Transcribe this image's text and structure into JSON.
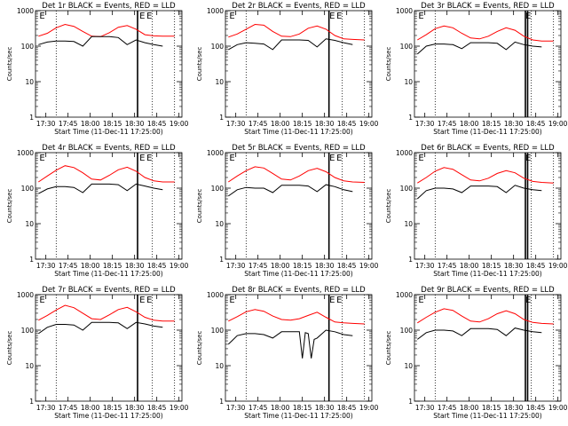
{
  "chart_data": {
    "type": "line",
    "layout": "3x3 grid",
    "y_scale": "log",
    "ylim": [
      1,
      1000
    ],
    "x_range_minutes": [
      -2,
      97
    ],
    "ylabel": "Counts/sec",
    "xlabel": "Start Time (11-Dec-11 17:25:00)",
    "x_ticks": [
      "17:30",
      "17:45",
      "18:00",
      "18:15",
      "18:30",
      "18:45",
      "19:00"
    ],
    "y_ticks": [
      "1",
      "10",
      "100",
      "1000"
    ],
    "title_suffix": "BLACK = Events, RED = LLD",
    "event_marker_label": "E",
    "series_colors": {
      "events": "#000000",
      "lld": "#ff0000"
    },
    "panels": [
      {
        "title_prefix": "Det 1r",
        "dotted_lines": [
          12,
          77,
          92
        ],
        "solid_lines": [
          67
        ],
        "markers": [
          0,
          67.7,
          72.5
        ],
        "lld": [
          [
            0,
            190
          ],
          [
            6,
            230
          ],
          [
            12,
            330
          ],
          [
            18,
            410
          ],
          [
            24,
            360
          ],
          [
            30,
            260
          ],
          [
            36,
            190
          ],
          [
            42,
            185
          ],
          [
            48,
            240
          ],
          [
            54,
            340
          ],
          [
            60,
            380
          ],
          [
            66,
            300
          ],
          [
            72,
            210
          ],
          [
            78,
            195
          ],
          [
            84,
            190
          ],
          [
            92,
            190
          ]
        ],
        "events": [
          [
            0,
            110
          ],
          [
            6,
            130
          ],
          [
            12,
            140
          ],
          [
            18,
            140
          ],
          [
            24,
            135
          ],
          [
            30,
            100
          ],
          [
            36,
            185
          ],
          [
            42,
            185
          ],
          [
            48,
            185
          ],
          [
            54,
            175
          ],
          [
            60,
            110
          ],
          [
            66,
            150
          ],
          [
            72,
            125
          ],
          [
            78,
            110
          ],
          [
            84,
            100
          ]
        ]
      },
      {
        "title_prefix": "Det 2r",
        "dotted_lines": [
          12,
          77,
          92
        ],
        "solid_lines": [
          68
        ],
        "markers": [
          0,
          67.7,
          72.5
        ],
        "lld": [
          [
            0,
            180
          ],
          [
            6,
            220
          ],
          [
            12,
            300
          ],
          [
            18,
            410
          ],
          [
            24,
            390
          ],
          [
            30,
            260
          ],
          [
            36,
            190
          ],
          [
            42,
            185
          ],
          [
            48,
            220
          ],
          [
            54,
            320
          ],
          [
            60,
            370
          ],
          [
            66,
            300
          ],
          [
            72,
            200
          ],
          [
            78,
            160
          ],
          [
            84,
            155
          ],
          [
            92,
            150
          ]
        ],
        "events": [
          [
            0,
            80
          ],
          [
            6,
            110
          ],
          [
            12,
            125
          ],
          [
            18,
            120
          ],
          [
            24,
            115
          ],
          [
            30,
            80
          ],
          [
            36,
            150
          ],
          [
            42,
            150
          ],
          [
            48,
            150
          ],
          [
            54,
            145
          ],
          [
            60,
            95
          ],
          [
            66,
            160
          ],
          [
            72,
            145
          ],
          [
            78,
            125
          ],
          [
            84,
            110
          ]
        ]
      },
      {
        "title_prefix": "Det 3r",
        "dotted_lines": [
          12,
          77,
          92
        ],
        "solid_lines": [
          73,
          74.5
        ],
        "markers": [
          0,
          72.5
        ],
        "lld": [
          [
            0,
            150
          ],
          [
            6,
            210
          ],
          [
            12,
            310
          ],
          [
            18,
            370
          ],
          [
            24,
            330
          ],
          [
            30,
            230
          ],
          [
            36,
            170
          ],
          [
            42,
            160
          ],
          [
            48,
            190
          ],
          [
            54,
            260
          ],
          [
            60,
            330
          ],
          [
            66,
            280
          ],
          [
            72,
            190
          ],
          [
            78,
            150
          ],
          [
            84,
            140
          ],
          [
            92,
            140
          ]
        ],
        "events": [
          [
            0,
            60
          ],
          [
            6,
            100
          ],
          [
            12,
            115
          ],
          [
            18,
            115
          ],
          [
            24,
            110
          ],
          [
            30,
            85
          ],
          [
            36,
            125
          ],
          [
            42,
            125
          ],
          [
            48,
            125
          ],
          [
            54,
            120
          ],
          [
            60,
            80
          ],
          [
            66,
            130
          ],
          [
            72,
            110
          ],
          [
            78,
            100
          ],
          [
            84,
            95
          ]
        ]
      },
      {
        "title_prefix": "Det 4r",
        "dotted_lines": [
          12,
          77,
          92
        ],
        "solid_lines": [
          67
        ],
        "markers": [
          0,
          67.7,
          72.5
        ],
        "lld": [
          [
            0,
            150
          ],
          [
            6,
            220
          ],
          [
            12,
            320
          ],
          [
            18,
            430
          ],
          [
            24,
            380
          ],
          [
            30,
            270
          ],
          [
            36,
            180
          ],
          [
            42,
            170
          ],
          [
            48,
            230
          ],
          [
            54,
            330
          ],
          [
            60,
            390
          ],
          [
            66,
            300
          ],
          [
            72,
            200
          ],
          [
            78,
            160
          ],
          [
            84,
            150
          ],
          [
            92,
            150
          ]
        ],
        "events": [
          [
            0,
            70
          ],
          [
            6,
            95
          ],
          [
            12,
            110
          ],
          [
            18,
            110
          ],
          [
            24,
            105
          ],
          [
            30,
            75
          ],
          [
            36,
            130
          ],
          [
            42,
            130
          ],
          [
            48,
            130
          ],
          [
            54,
            125
          ],
          [
            60,
            85
          ],
          [
            66,
            130
          ],
          [
            72,
            115
          ],
          [
            78,
            100
          ],
          [
            84,
            90
          ]
        ]
      },
      {
        "title_prefix": "Det 5r",
        "dotted_lines": [
          12,
          77,
          92
        ],
        "solid_lines": [
          68
        ],
        "markers": [
          0,
          67.7,
          72.5
        ],
        "lld": [
          [
            0,
            150
          ],
          [
            6,
            220
          ],
          [
            12,
            310
          ],
          [
            18,
            400
          ],
          [
            24,
            370
          ],
          [
            30,
            260
          ],
          [
            36,
            180
          ],
          [
            42,
            170
          ],
          [
            48,
            220
          ],
          [
            54,
            310
          ],
          [
            60,
            360
          ],
          [
            66,
            290
          ],
          [
            72,
            200
          ],
          [
            78,
            160
          ],
          [
            84,
            150
          ],
          [
            92,
            145
          ]
        ],
        "events": [
          [
            0,
            60
          ],
          [
            6,
            90
          ],
          [
            12,
            105
          ],
          [
            18,
            100
          ],
          [
            24,
            100
          ],
          [
            30,
            75
          ],
          [
            36,
            120
          ],
          [
            42,
            120
          ],
          [
            48,
            120
          ],
          [
            54,
            115
          ],
          [
            60,
            80
          ],
          [
            66,
            125
          ],
          [
            72,
            110
          ],
          [
            78,
            90
          ],
          [
            84,
            80
          ]
        ]
      },
      {
        "title_prefix": "Det 6r",
        "dotted_lines": [
          12,
          77,
          92
        ],
        "solid_lines": [
          73,
          74.5
        ],
        "markers": [
          0,
          72.5
        ],
        "lld": [
          [
            0,
            140
          ],
          [
            6,
            200
          ],
          [
            12,
            300
          ],
          [
            18,
            380
          ],
          [
            24,
            340
          ],
          [
            30,
            240
          ],
          [
            36,
            170
          ],
          [
            42,
            160
          ],
          [
            48,
            190
          ],
          [
            54,
            260
          ],
          [
            60,
            310
          ],
          [
            66,
            270
          ],
          [
            72,
            190
          ],
          [
            78,
            155
          ],
          [
            84,
            145
          ],
          [
            92,
            140
          ]
        ],
        "events": [
          [
            0,
            50
          ],
          [
            6,
            85
          ],
          [
            12,
            100
          ],
          [
            18,
            100
          ],
          [
            24,
            95
          ],
          [
            30,
            75
          ],
          [
            36,
            115
          ],
          [
            42,
            115
          ],
          [
            48,
            115
          ],
          [
            54,
            110
          ],
          [
            60,
            75
          ],
          [
            66,
            120
          ],
          [
            72,
            100
          ],
          [
            78,
            90
          ],
          [
            84,
            85
          ]
        ]
      },
      {
        "title_prefix": "Det 7r",
        "dotted_lines": [
          12,
          77,
          92
        ],
        "solid_lines": [
          67
        ],
        "markers": [
          0,
          67.7,
          72.5
        ],
        "lld": [
          [
            0,
            190
          ],
          [
            6,
            260
          ],
          [
            12,
            370
          ],
          [
            18,
            500
          ],
          [
            24,
            430
          ],
          [
            30,
            300
          ],
          [
            36,
            210
          ],
          [
            42,
            200
          ],
          [
            48,
            270
          ],
          [
            54,
            380
          ],
          [
            60,
            440
          ],
          [
            66,
            330
          ],
          [
            72,
            230
          ],
          [
            78,
            190
          ],
          [
            84,
            180
          ],
          [
            92,
            180
          ]
        ],
        "events": [
          [
            0,
            80
          ],
          [
            6,
            120
          ],
          [
            12,
            145
          ],
          [
            18,
            145
          ],
          [
            24,
            140
          ],
          [
            30,
            100
          ],
          [
            36,
            165
          ],
          [
            42,
            165
          ],
          [
            48,
            165
          ],
          [
            54,
            160
          ],
          [
            60,
            110
          ],
          [
            66,
            165
          ],
          [
            72,
            150
          ],
          [
            78,
            130
          ],
          [
            84,
            120
          ]
        ]
      },
      {
        "title_prefix": "Det 8r",
        "dotted_lines": [
          12,
          77,
          92
        ],
        "solid_lines": [
          68
        ],
        "markers": [
          0,
          67.7,
          72.5
        ],
        "lld": [
          [
            0,
            180
          ],
          [
            6,
            240
          ],
          [
            12,
            330
          ],
          [
            18,
            380
          ],
          [
            24,
            340
          ],
          [
            30,
            250
          ],
          [
            36,
            200
          ],
          [
            42,
            190
          ],
          [
            48,
            210
          ],
          [
            54,
            260
          ],
          [
            60,
            320
          ],
          [
            66,
            230
          ],
          [
            72,
            170
          ],
          [
            78,
            160
          ],
          [
            84,
            155
          ],
          [
            92,
            150
          ]
        ],
        "events": [
          [
            0,
            40
          ],
          [
            6,
            70
          ],
          [
            12,
            80
          ],
          [
            18,
            80
          ],
          [
            24,
            75
          ],
          [
            30,
            60
          ],
          [
            36,
            90
          ],
          [
            42,
            90
          ],
          [
            48,
            90
          ],
          [
            50,
            16
          ],
          [
            52,
            85
          ],
          [
            54,
            80
          ],
          [
            56,
            16
          ],
          [
            58,
            55
          ],
          [
            60,
            60
          ],
          [
            66,
            100
          ],
          [
            72,
            90
          ],
          [
            78,
            75
          ],
          [
            84,
            70
          ]
        ]
      },
      {
        "title_prefix": "Det 9r",
        "dotted_lines": [
          12,
          77,
          92
        ],
        "solid_lines": [
          73,
          74.5
        ],
        "markers": [
          0,
          72.5
        ],
        "lld": [
          [
            0,
            160
          ],
          [
            6,
            230
          ],
          [
            12,
            320
          ],
          [
            18,
            400
          ],
          [
            24,
            360
          ],
          [
            30,
            250
          ],
          [
            36,
            180
          ],
          [
            42,
            170
          ],
          [
            48,
            210
          ],
          [
            54,
            290
          ],
          [
            60,
            350
          ],
          [
            66,
            290
          ],
          [
            72,
            200
          ],
          [
            78,
            165
          ],
          [
            84,
            155
          ],
          [
            92,
            150
          ]
        ],
        "events": [
          [
            0,
            55
          ],
          [
            6,
            85
          ],
          [
            12,
            100
          ],
          [
            18,
            100
          ],
          [
            24,
            95
          ],
          [
            30,
            70
          ],
          [
            36,
            110
          ],
          [
            42,
            110
          ],
          [
            48,
            110
          ],
          [
            54,
            105
          ],
          [
            60,
            70
          ],
          [
            66,
            115
          ],
          [
            72,
            100
          ],
          [
            78,
            90
          ],
          [
            84,
            85
          ]
        ]
      }
    ]
  }
}
